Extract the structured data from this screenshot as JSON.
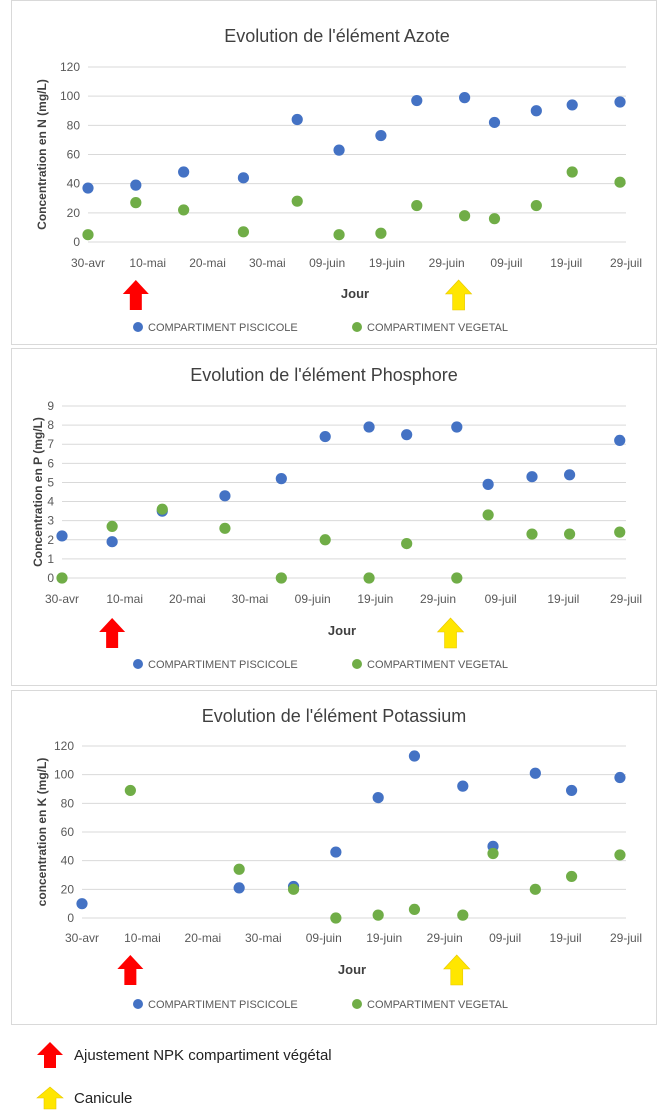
{
  "chart_data": [
    {
      "type": "scatter",
      "title": "Evolution de l'élément Azote",
      "xlabel": "Jour",
      "ylabel": "Concentration en N (mg/L)",
      "ylim": [
        0,
        120
      ],
      "ytick_labels": [
        "0",
        "20",
        "40",
        "60",
        "80",
        "100",
        "120"
      ],
      "x_tick_labels": [
        "30-avr",
        "10-mai",
        "20-mai",
        "30-mai",
        "09-juin",
        "19-juin",
        "29-juin",
        "09-juil",
        "19-juil",
        "29-juil"
      ],
      "x_tick_dates": [
        "2021-04-30",
        "2021-05-10",
        "2021-05-20",
        "2021-05-30",
        "2021-06-09",
        "2021-06-19",
        "2021-06-29",
        "2021-07-09",
        "2021-07-19",
        "2021-07-29"
      ],
      "grid": true,
      "legend_position": "bottom",
      "series": [
        {
          "name": "COMPARTIMENT PISCICOLE",
          "color": "#4472C4",
          "points": [
            {
              "x": "2021-04-30",
              "y": 37
            },
            {
              "x": "2021-05-08",
              "y": 39
            },
            {
              "x": "2021-05-16",
              "y": 48
            },
            {
              "x": "2021-05-26",
              "y": 44
            },
            {
              "x": "2021-06-04",
              "y": 84
            },
            {
              "x": "2021-06-11",
              "y": 63
            },
            {
              "x": "2021-06-18",
              "y": 73
            },
            {
              "x": "2021-06-24",
              "y": 97
            },
            {
              "x": "2021-07-02",
              "y": 99
            },
            {
              "x": "2021-07-07",
              "y": 82
            },
            {
              "x": "2021-07-14",
              "y": 90
            },
            {
              "x": "2021-07-20",
              "y": 94
            },
            {
              "x": "2021-07-28",
              "y": 96
            }
          ]
        },
        {
          "name": "COMPARTIMENT VEGETAL",
          "color": "#70AD47",
          "points": [
            {
              "x": "2021-04-30",
              "y": 5
            },
            {
              "x": "2021-05-08",
              "y": 27
            },
            {
              "x": "2021-05-16",
              "y": 22
            },
            {
              "x": "2021-05-26",
              "y": 7
            },
            {
              "x": "2021-06-04",
              "y": 28
            },
            {
              "x": "2021-06-11",
              "y": 5
            },
            {
              "x": "2021-06-18",
              "y": 6
            },
            {
              "x": "2021-06-24",
              "y": 25
            },
            {
              "x": "2021-07-02",
              "y": 18
            },
            {
              "x": "2021-07-07",
              "y": 16
            },
            {
              "x": "2021-07-14",
              "y": 25
            },
            {
              "x": "2021-07-20",
              "y": 48
            },
            {
              "x": "2021-07-28",
              "y": 41
            }
          ]
        }
      ],
      "annotations": [
        {
          "marker": "red-up-arrow",
          "date": "2021-05-08"
        },
        {
          "marker": "yellow-up-arrow",
          "date": "2021-07-01"
        }
      ]
    },
    {
      "type": "scatter",
      "title": "Evolution de l'élément Phosphore",
      "xlabel": "Jour",
      "ylabel": "Concentration en P (mg/L)",
      "ylim": [
        0,
        9
      ],
      "ytick_labels": [
        "0",
        "1",
        "2",
        "3",
        "4",
        "5",
        "6",
        "7",
        "8",
        "9"
      ],
      "x_tick_labels": [
        "30-avr",
        "10-mai",
        "20-mai",
        "30-mai",
        "09-juin",
        "19-juin",
        "29-juin",
        "09-juil",
        "19-juil",
        "29-juil"
      ],
      "x_tick_dates": [
        "2021-04-30",
        "2021-05-10",
        "2021-05-20",
        "2021-05-30",
        "2021-06-09",
        "2021-06-19",
        "2021-06-29",
        "2021-07-09",
        "2021-07-19",
        "2021-07-29"
      ],
      "grid": true,
      "legend_position": "bottom",
      "series": [
        {
          "name": "COMPARTIMENT PISCICOLE",
          "color": "#4472C4",
          "points": [
            {
              "x": "2021-04-30",
              "y": 2.2
            },
            {
              "x": "2021-05-08",
              "y": 1.9
            },
            {
              "x": "2021-05-16",
              "y": 3.5
            },
            {
              "x": "2021-05-26",
              "y": 4.3
            },
            {
              "x": "2021-06-04",
              "y": 5.2
            },
            {
              "x": "2021-06-11",
              "y": 7.4
            },
            {
              "x": "2021-06-18",
              "y": 7.9
            },
            {
              "x": "2021-06-24",
              "y": 7.5
            },
            {
              "x": "2021-07-02",
              "y": 7.9
            },
            {
              "x": "2021-07-07",
              "y": 4.9
            },
            {
              "x": "2021-07-14",
              "y": 5.3
            },
            {
              "x": "2021-07-20",
              "y": 5.4
            },
            {
              "x": "2021-07-28",
              "y": 7.2
            }
          ]
        },
        {
          "name": "COMPARTIMENT VEGETAL",
          "color": "#70AD47",
          "points": [
            {
              "x": "2021-04-30",
              "y": 0
            },
            {
              "x": "2021-05-08",
              "y": 2.7
            },
            {
              "x": "2021-05-16",
              "y": 3.6
            },
            {
              "x": "2021-05-26",
              "y": 2.6
            },
            {
              "x": "2021-06-04",
              "y": 0
            },
            {
              "x": "2021-06-11",
              "y": 2.0
            },
            {
              "x": "2021-06-18",
              "y": 0
            },
            {
              "x": "2021-06-24",
              "y": 1.8
            },
            {
              "x": "2021-07-02",
              "y": 0
            },
            {
              "x": "2021-07-07",
              "y": 3.3
            },
            {
              "x": "2021-07-14",
              "y": 2.3
            },
            {
              "x": "2021-07-20",
              "y": 2.3
            },
            {
              "x": "2021-07-28",
              "y": 2.4
            }
          ]
        }
      ],
      "annotations": [
        {
          "marker": "red-up-arrow",
          "date": "2021-05-08"
        },
        {
          "marker": "yellow-up-arrow",
          "date": "2021-07-01"
        }
      ]
    },
    {
      "type": "scatter",
      "title": "Evolution de l'élément Potassium",
      "xlabel": "Jour",
      "ylabel": "concentration en K (mg/L)",
      "ylim": [
        0,
        120
      ],
      "ytick_labels": [
        "0",
        "20",
        "40",
        "60",
        "80",
        "100",
        "120"
      ],
      "x_tick_labels": [
        "30-avr",
        "10-mai",
        "20-mai",
        "30-mai",
        "09-juin",
        "19-juin",
        "29-juin",
        "09-juil",
        "19-juil",
        "29-juil"
      ],
      "x_tick_dates": [
        "2021-04-30",
        "2021-05-10",
        "2021-05-20",
        "2021-05-30",
        "2021-06-09",
        "2021-06-19",
        "2021-06-29",
        "2021-07-09",
        "2021-07-19",
        "2021-07-29"
      ],
      "grid": true,
      "legend_position": "bottom",
      "series": [
        {
          "name": "COMPARTIMENT PISCICOLE",
          "color": "#4472C4",
          "points": [
            {
              "x": "2021-04-30",
              "y": 10
            },
            {
              "x": "2021-05-26",
              "y": 21
            },
            {
              "x": "2021-06-04",
              "y": 22
            },
            {
              "x": "2021-06-11",
              "y": 46
            },
            {
              "x": "2021-06-18",
              "y": 84
            },
            {
              "x": "2021-06-24",
              "y": 113
            },
            {
              "x": "2021-07-02",
              "y": 92
            },
            {
              "x": "2021-07-07",
              "y": 50
            },
            {
              "x": "2021-07-14",
              "y": 101
            },
            {
              "x": "2021-07-20",
              "y": 89
            },
            {
              "x": "2021-07-28",
              "y": 98
            }
          ]
        },
        {
          "name": "COMPARTIMENT VEGETAL",
          "color": "#70AD47",
          "points": [
            {
              "x": "2021-05-08",
              "y": 89
            },
            {
              "x": "2021-05-26",
              "y": 34
            },
            {
              "x": "2021-06-04",
              "y": 20
            },
            {
              "x": "2021-06-11",
              "y": 0
            },
            {
              "x": "2021-06-18",
              "y": 2
            },
            {
              "x": "2021-06-24",
              "y": 6
            },
            {
              "x": "2021-07-02",
              "y": 2
            },
            {
              "x": "2021-07-07",
              "y": 45
            },
            {
              "x": "2021-07-14",
              "y": 20
            },
            {
              "x": "2021-07-20",
              "y": 29
            },
            {
              "x": "2021-07-28",
              "y": 44
            }
          ]
        }
      ],
      "annotations": [
        {
          "marker": "red-up-arrow",
          "date": "2021-05-08"
        },
        {
          "marker": "yellow-up-arrow",
          "date": "2021-07-01"
        }
      ]
    }
  ],
  "footer_legend": [
    {
      "icon": "red-up-arrow-icon",
      "color": "#FF0000",
      "label": "Ajustement NPK compartiment végétal"
    },
    {
      "icon": "yellow-up-arrow-icon",
      "color": "#FFE600",
      "label": "Canicule"
    }
  ]
}
